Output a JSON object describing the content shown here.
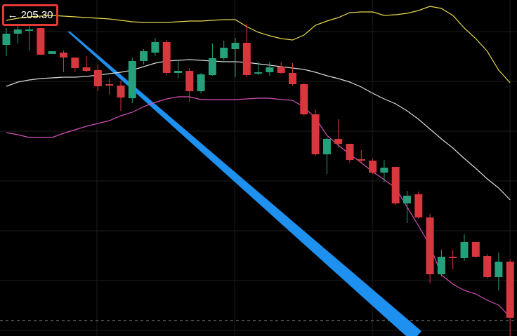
{
  "chart_data": {
    "type": "candlestick",
    "price_label": "← 205.30",
    "ylim": [
      0,
      479
    ],
    "up_color": "#26a07a",
    "down_color": "#d8373d",
    "candles": {
      "open": [
        415,
        431,
        435,
        439,
        402,
        404,
        397,
        383,
        379,
        359,
        357,
        339,
        392,
        404,
        419,
        375,
        378,
        349,
        372,
        396,
        409,
        418,
        374,
        376,
        384,
        375,
        359,
        316,
        259,
        281,
        274,
        252,
        250,
        233,
        241,
        189,
        202,
        169,
        88,
        113,
        111,
        134,
        114,
        84,
        106
      ],
      "high": [
        439,
        443,
        443,
        439,
        406,
        407,
        397,
        399,
        387,
        367,
        364,
        397,
        409,
        425,
        422,
        393,
        382,
        375,
        417,
        421,
        425,
        445,
        391,
        391,
        391,
        389,
        361,
        323,
        283,
        309,
        274,
        265,
        253,
        251,
        241,
        207,
        206,
        174,
        123,
        123,
        145,
        134,
        117,
        119,
        109
      ],
      "low": [
        399,
        417,
        407,
        401,
        402,
        376,
        376,
        376,
        349,
        344,
        321,
        332,
        387,
        399,
        371,
        367,
        334,
        346,
        371,
        393,
        369,
        369,
        372,
        371,
        374,
        357,
        314,
        257,
        231,
        269,
        247,
        247,
        231,
        219,
        187,
        161,
        167,
        75,
        85,
        95,
        107,
        111,
        82,
        65,
        0
      ],
      "close": [
        431,
        437,
        437,
        401,
        406,
        397,
        382,
        378,
        356,
        357,
        340,
        392,
        406,
        419,
        375,
        378,
        349,
        373,
        396,
        411,
        418,
        372,
        376,
        383,
        375,
        359,
        316,
        259,
        281,
        274,
        251,
        250,
        233,
        240,
        189,
        200,
        169,
        88,
        113,
        111,
        134,
        113,
        84,
        106,
        26
      ]
    },
    "series": [
      {
        "color": "#e8d84a",
        "values": [
          450,
          453,
          455,
          456,
          457,
          456,
          455,
          454,
          453,
          452,
          450,
          448,
          447,
          447,
          447,
          448,
          449,
          449,
          450,
          451,
          451,
          441,
          433,
          428,
          424,
          422,
          429,
          443,
          449,
          454,
          461,
          462,
          462,
          457,
          458,
          460,
          464,
          470,
          467,
          457,
          439,
          424,
          406,
          379,
          361
        ]
      },
      {
        "color": "#d8d8d8",
        "values": [
          356,
          362,
          365,
          367,
          368,
          369,
          369,
          370,
          372,
          374,
          376,
          379,
          384,
          389,
          392,
          393,
          394,
          393,
          392,
          391,
          391,
          390,
          388,
          386,
          384,
          382,
          380,
          376,
          371,
          367,
          362,
          355,
          346,
          338,
          331,
          321,
          309,
          295,
          281,
          268,
          253,
          239,
          224,
          211,
          194
        ]
      },
      {
        "color": "#d54fb8",
        "values": [
          290,
          287,
          283,
          283,
          283,
          289,
          294,
          299,
          303,
          307,
          314,
          319,
          327,
          333,
          338,
          341,
          341,
          337,
          337,
          337,
          337,
          338,
          339,
          339,
          337,
          336,
          326,
          311,
          286,
          272,
          259,
          247,
          234,
          223,
          211,
          184,
          157,
          129,
          87,
          74,
          65,
          60,
          51,
          44,
          27
        ]
      }
    ]
  }
}
